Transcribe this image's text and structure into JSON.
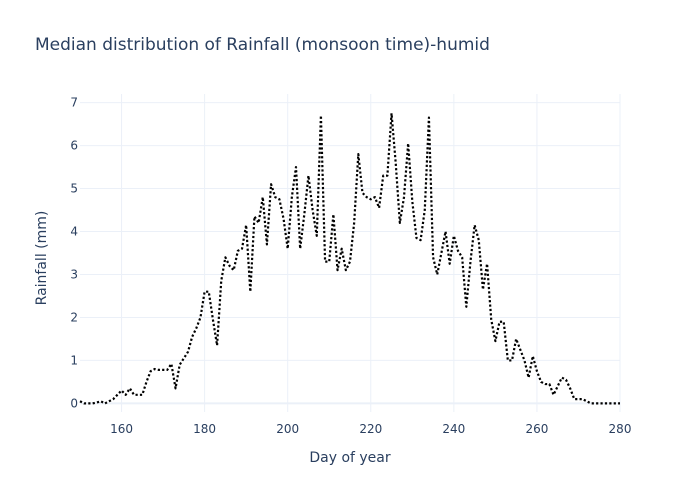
{
  "chart_data": {
    "type": "line",
    "title": "Median distribution of Rainfall (monsoon time)-humid",
    "xlabel": "Day of year",
    "ylabel": "Rainfall (mm)",
    "xlim": [
      150,
      280
    ],
    "ylim": [
      -0.2,
      7.2
    ],
    "x_ticks": [
      160,
      180,
      200,
      220,
      240,
      260,
      280
    ],
    "y_ticks": [
      0,
      1,
      2,
      3,
      4,
      5,
      6,
      7
    ],
    "grid": true,
    "legend": "none",
    "series": [
      {
        "color": "#000000",
        "dash": "dot",
        "x": [
          150,
          151,
          152,
          153,
          154,
          155,
          156,
          157,
          158,
          159,
          160,
          161,
          162,
          163,
          164,
          165,
          166,
          167,
          168,
          169,
          170,
          171,
          172,
          173,
          174,
          175,
          176,
          177,
          178,
          179,
          180,
          181,
          182,
          183,
          184,
          185,
          186,
          187,
          188,
          189,
          190,
          191,
          192,
          193,
          194,
          195,
          196,
          197,
          198,
          199,
          200,
          201,
          202,
          203,
          204,
          205,
          206,
          207,
          208,
          209,
          210,
          211,
          212,
          213,
          214,
          215,
          216,
          217,
          218,
          219,
          220,
          221,
          222,
          223,
          224,
          225,
          226,
          227,
          228,
          229,
          230,
          231,
          232,
          233,
          234,
          235,
          236,
          237,
          238,
          239,
          240,
          241,
          242,
          243,
          244,
          245,
          246,
          247,
          248,
          249,
          250,
          251,
          252,
          253,
          254,
          255,
          256,
          257,
          258,
          259,
          260,
          261,
          262,
          263,
          264,
          265,
          266,
          267,
          268,
          269,
          270,
          271,
          272,
          273,
          274,
          275,
          276,
          277,
          278,
          279,
          280
        ],
        "y": [
          0.05,
          0.0,
          0.0,
          0.0,
          0.02,
          0.05,
          0.0,
          0.05,
          0.1,
          0.2,
          0.3,
          0.2,
          0.35,
          0.2,
          0.2,
          0.2,
          0.5,
          0.75,
          0.8,
          0.78,
          0.78,
          0.78,
          0.92,
          0.35,
          0.9,
          1.05,
          1.2,
          1.55,
          1.75,
          2.0,
          2.6,
          2.6,
          1.95,
          1.35,
          2.85,
          3.4,
          3.2,
          3.1,
          3.55,
          3.6,
          4.15,
          2.6,
          4.35,
          4.2,
          4.8,
          3.7,
          5.1,
          4.8,
          4.75,
          4.3,
          3.6,
          4.8,
          5.5,
          3.6,
          4.4,
          5.3,
          4.5,
          3.9,
          6.7,
          3.3,
          3.3,
          4.4,
          3.1,
          3.6,
          3.1,
          3.3,
          4.2,
          5.8,
          4.9,
          4.8,
          4.75,
          4.8,
          4.55,
          5.3,
          5.3,
          6.75,
          5.6,
          4.2,
          4.8,
          6.05,
          4.7,
          3.85,
          3.8,
          4.5,
          6.65,
          3.4,
          3.0,
          3.5,
          4.0,
          3.25,
          3.9,
          3.55,
          3.4,
          2.25,
          3.3,
          4.15,
          3.8,
          2.65,
          3.25,
          1.95,
          1.45,
          1.9,
          1.9,
          1.0,
          1.0,
          1.5,
          1.25,
          1.0,
          0.6,
          1.1,
          0.75,
          0.5,
          0.45,
          0.45,
          0.2,
          0.4,
          0.6,
          0.55,
          0.35,
          0.1,
          0.1,
          0.1,
          0.05,
          0.0,
          0.0,
          0.0,
          0.0,
          0.0,
          0.0,
          0.0,
          0.0
        ]
      }
    ]
  }
}
